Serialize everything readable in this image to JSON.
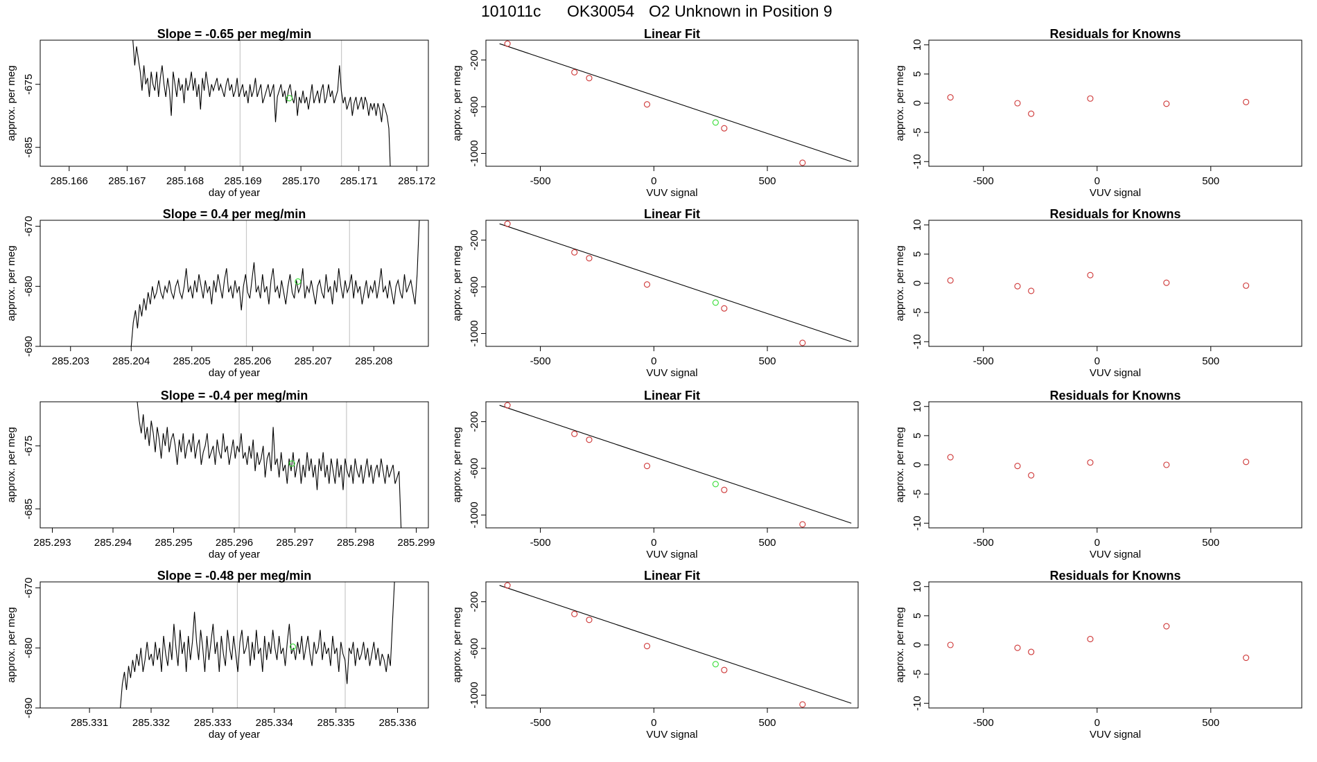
{
  "title_parts": [
    "101011c",
    "OK30054",
    "O2 Unknown in Position  9"
  ],
  "colors": {
    "known_point": "#cd3333",
    "unknown_point": "#33dd33",
    "line": "#000000",
    "vline": "#c8c8c8"
  },
  "chart_data": [
    {
      "type": "line",
      "title": "Slope =  -0.65  per meg/min",
      "xlabel": "day of year",
      "ylabel": "approx. per meg",
      "xlim": [
        285.1655,
        285.1722
      ],
      "ylim": [
        -688,
        -668
      ],
      "xticks": [
        285.166,
        285.167,
        285.168,
        285.169,
        285.17,
        285.171,
        285.172
      ],
      "xtick_labels": [
        "285.166",
        "285.167",
        "285.168",
        "285.169",
        "285.170",
        "285.171",
        "285.172"
      ],
      "yticks": [
        -685,
        -675
      ],
      "ytick_labels": [
        "-685",
        "-675"
      ],
      "vlines": [
        285.16895,
        285.1707
      ],
      "unknown_point": {
        "x": 285.1698,
        "y": -677.2
      },
      "series_x_range": [
        285.1671,
        285.17155
      ],
      "series_y": [
        -668,
        -672,
        -669,
        -671,
        -673,
        -676,
        -672,
        -675,
        -674,
        -677,
        -673,
        -675,
        -676,
        -673,
        -677,
        -674,
        -672,
        -675,
        -677,
        -674,
        -676,
        -680,
        -673,
        -675,
        -677,
        -674,
        -676,
        -675,
        -678,
        -674,
        -676,
        -675,
        -673,
        -676,
        -674,
        -677,
        -675,
        -679,
        -674,
        -676,
        -673,
        -675,
        -677,
        -675,
        -676,
        -675,
        -674,
        -676,
        -675,
        -676,
        -677,
        -675,
        -674,
        -676,
        -675,
        -677,
        -676,
        -674,
        -677,
        -676,
        -675,
        -677,
        -676,
        -678,
        -675,
        -677,
        -676,
        -674,
        -677,
        -676,
        -675,
        -678,
        -677,
        -676,
        -675,
        -677,
        -676,
        -675,
        -681,
        -677,
        -676,
        -675,
        -677,
        -676,
        -678,
        -676,
        -675,
        -677,
        -678,
        -676,
        -680,
        -677,
        -678,
        -676,
        -678,
        -677,
        -679,
        -677,
        -675,
        -678,
        -677,
        -676,
        -678,
        -676,
        -675,
        -678,
        -677,
        -675,
        -677,
        -676,
        -678,
        -677,
        -676,
        -672,
        -676,
        -678,
        -677,
        -679,
        -678,
        -677,
        -680,
        -678,
        -677,
        -679,
        -678,
        -677,
        -679,
        -677,
        -678,
        -680,
        -678,
        -679,
        -678,
        -680,
        -678,
        -679,
        -681,
        -678,
        -679,
        -680,
        -682,
        -690
      ]
    },
    {
      "type": "scatter",
      "title": "Linear Fit",
      "xlabel": "VUV signal",
      "ylabel": "approx. per meg",
      "xlim": [
        -740,
        900
      ],
      "ylim": [
        -1110,
        -30
      ],
      "xticks": [
        -500,
        0,
        500
      ],
      "xtick_labels": [
        "-500",
        "0",
        "500"
      ],
      "yticks": [
        -200,
        -600,
        -1000
      ],
      "ytick_labels": [
        "-200",
        "-600",
        "-1000"
      ],
      "fit_line": [
        [
          -680,
          -60
        ],
        [
          870,
          -1070
        ]
      ],
      "knowns": [
        [
          -645,
          -60
        ],
        [
          -350,
          -305
        ],
        [
          -285,
          -355
        ],
        [
          -30,
          -580
        ],
        [
          310,
          -785
        ],
        [
          655,
          -1080
        ]
      ],
      "unknown": [
        272,
        -735
      ]
    },
    {
      "type": "scatter",
      "title": "Residuals for Knowns",
      "xlabel": "VUV signal",
      "ylabel": "approx. per meg",
      "xlim": [
        -740,
        900
      ],
      "ylim": [
        -10.8,
        10.8
      ],
      "xticks": [
        -500,
        0,
        500
      ],
      "xtick_labels": [
        "-500",
        "0",
        "500"
      ],
      "yticks": [
        10,
        5,
        0,
        -5,
        -10
      ],
      "ytick_labels": [
        "10",
        "5",
        "0",
        "-5",
        "-10"
      ],
      "points": [
        [
          -645,
          1.0
        ],
        [
          -350,
          0.0
        ],
        [
          -290,
          -1.8
        ],
        [
          -30,
          0.8
        ],
        [
          305,
          -0.1
        ],
        [
          655,
          0.2
        ]
      ]
    },
    {
      "type": "line",
      "title": "Slope =  0.4  per meg/min",
      "xlabel": "day of year",
      "ylabel": "approx. per meg",
      "xlim": [
        285.2025,
        285.2089
      ],
      "ylim": [
        -690,
        -669
      ],
      "xticks": [
        285.203,
        285.204,
        285.205,
        285.206,
        285.207,
        285.208
      ],
      "xtick_labels": [
        "285.203",
        "285.204",
        "285.205",
        "285.206",
        "285.207",
        "285.208"
      ],
      "yticks": [
        -670,
        -680,
        -690
      ],
      "ytick_labels": [
        "-670",
        "-680",
        "-690"
      ],
      "vlines": [
        285.2059,
        285.2076
      ],
      "unknown_point": {
        "x": 285.20675,
        "y": -679.2
      },
      "series_x_range": [
        285.204,
        285.20875
      ],
      "series_y": [
        -690,
        -686,
        -684,
        -687,
        -683,
        -685,
        -682,
        -684,
        -681,
        -683,
        -680,
        -682,
        -681,
        -679,
        -681,
        -682,
        -680,
        -681,
        -679,
        -681,
        -682,
        -680,
        -679,
        -681,
        -682,
        -680,
        -677,
        -681,
        -680,
        -682,
        -679,
        -681,
        -678,
        -680,
        -682,
        -679,
        -681,
        -680,
        -683,
        -679,
        -681,
        -678,
        -680,
        -682,
        -679,
        -677,
        -681,
        -680,
        -682,
        -679,
        -681,
        -680,
        -684,
        -680,
        -678,
        -681,
        -682,
        -679,
        -676,
        -681,
        -680,
        -682,
        -678,
        -681,
        -680,
        -683,
        -679,
        -677,
        -681,
        -680,
        -682,
        -679,
        -681,
        -683,
        -680,
        -678,
        -681,
        -682,
        -679,
        -681,
        -680,
        -677,
        -682,
        -680,
        -681,
        -679,
        -681,
        -683,
        -680,
        -679,
        -681,
        -682,
        -678,
        -681,
        -680,
        -683,
        -679,
        -681,
        -677,
        -680,
        -682,
        -679,
        -681,
        -680,
        -678,
        -682,
        -679,
        -681,
        -680,
        -683,
        -681,
        -679,
        -682,
        -680,
        -681,
        -679,
        -682,
        -680,
        -677,
        -681,
        -680,
        -682,
        -679,
        -681,
        -683,
        -680,
        -679,
        -681,
        -682,
        -678,
        -681,
        -680,
        -679,
        -681,
        -683,
        -678,
        -669
      ]
    },
    {
      "type": "scatter",
      "title": "Linear Fit",
      "xlabel": "VUV signal",
      "ylabel": "approx. per meg",
      "xlim": [
        -740,
        900
      ],
      "ylim": [
        -1110,
        -30
      ],
      "xticks": [
        -500,
        0,
        500
      ],
      "xtick_labels": [
        "-500",
        "0",
        "500"
      ],
      "yticks": [
        -200,
        -600,
        -1000
      ],
      "ytick_labels": [
        "-200",
        "-600",
        "-1000"
      ],
      "fit_line": [
        [
          -680,
          -60
        ],
        [
          870,
          -1070
        ]
      ],
      "knowns": [
        [
          -645,
          -60
        ],
        [
          -350,
          -305
        ],
        [
          -285,
          -355
        ],
        [
          -30,
          -580
        ],
        [
          310,
          -785
        ],
        [
          655,
          -1080
        ]
      ],
      "unknown": [
        272,
        -735
      ]
    },
    {
      "type": "scatter",
      "title": "Residuals for Knowns",
      "xlabel": "VUV signal",
      "ylabel": "approx. per meg",
      "xlim": [
        -740,
        900
      ],
      "ylim": [
        -10.8,
        10.8
      ],
      "xticks": [
        -500,
        0,
        500
      ],
      "xtick_labels": [
        "-500",
        "0",
        "500"
      ],
      "yticks": [
        10,
        5,
        0,
        -5,
        -10
      ],
      "ytick_labels": [
        "10",
        "5",
        "0",
        "-5",
        "-10"
      ],
      "points": [
        [
          -645,
          0.5
        ],
        [
          -350,
          -0.5
        ],
        [
          -290,
          -1.3
        ],
        [
          -30,
          1.4
        ],
        [
          305,
          0.1
        ],
        [
          655,
          -0.4
        ]
      ]
    },
    {
      "type": "line",
      "title": "Slope =  -0.4  per meg/min",
      "xlabel": "day of year",
      "ylabel": "approx. per meg",
      "xlim": [
        285.2928,
        285.2992
      ],
      "ylim": [
        -688,
        -668
      ],
      "xticks": [
        285.293,
        285.294,
        285.295,
        285.296,
        285.297,
        285.298,
        285.299
      ],
      "xtick_labels": [
        "285.293",
        "285.294",
        "285.295",
        "285.296",
        "285.297",
        "285.298",
        "285.299"
      ],
      "yticks": [
        -685,
        -675
      ],
      "ytick_labels": [
        "-685",
        "-675"
      ],
      "vlines": [
        285.29608,
        285.29785
      ],
      "unknown_point": {
        "x": 285.29695,
        "y": -677.8
      },
      "series_x_range": [
        285.2944,
        285.29875
      ],
      "series_y": [
        -668,
        -671,
        -673,
        -670,
        -674,
        -672,
        -675,
        -671,
        -673,
        -676,
        -672,
        -674,
        -677,
        -673,
        -675,
        -672,
        -676,
        -674,
        -673,
        -675,
        -678,
        -674,
        -676,
        -673,
        -677,
        -675,
        -674,
        -676,
        -673,
        -677,
        -675,
        -674,
        -678,
        -676,
        -675,
        -673,
        -677,
        -676,
        -675,
        -678,
        -674,
        -676,
        -677,
        -673,
        -676,
        -675,
        -678,
        -676,
        -674,
        -677,
        -675,
        -676,
        -673,
        -677,
        -676,
        -678,
        -675,
        -677,
        -674,
        -679,
        -676,
        -678,
        -677,
        -675,
        -680,
        -677,
        -676,
        -679,
        -672,
        -678,
        -677,
        -680,
        -676,
        -679,
        -678,
        -681,
        -677,
        -679,
        -676,
        -680,
        -678,
        -677,
        -681,
        -678,
        -680,
        -676,
        -679,
        -677,
        -680,
        -678,
        -682,
        -677,
        -679,
        -676,
        -680,
        -678,
        -681,
        -677,
        -679,
        -681,
        -677,
        -680,
        -678,
        -682,
        -677,
        -679,
        -680,
        -678,
        -681,
        -677,
        -679,
        -680,
        -678,
        -681,
        -679,
        -677,
        -680,
        -678,
        -681,
        -679,
        -678,
        -680,
        -677,
        -679,
        -681,
        -678,
        -680,
        -679,
        -678,
        -681,
        -680,
        -679,
        -688
      ]
    },
    {
      "type": "scatter",
      "title": "Linear Fit",
      "xlabel": "VUV signal",
      "ylabel": "approx. per meg",
      "xlim": [
        -740,
        900
      ],
      "ylim": [
        -1110,
        -30
      ],
      "xticks": [
        -500,
        0,
        500
      ],
      "xtick_labels": [
        "-500",
        "0",
        "500"
      ],
      "yticks": [
        -200,
        -600,
        -1000
      ],
      "ytick_labels": [
        "-200",
        "-600",
        "-1000"
      ],
      "fit_line": [
        [
          -680,
          -60
        ],
        [
          870,
          -1070
        ]
      ],
      "knowns": [
        [
          -645,
          -60
        ],
        [
          -350,
          -305
        ],
        [
          -285,
          -355
        ],
        [
          -30,
          -580
        ],
        [
          310,
          -785
        ],
        [
          655,
          -1080
        ]
      ],
      "unknown": [
        272,
        -735
      ]
    },
    {
      "type": "scatter",
      "title": "Residuals for Knowns",
      "xlabel": "VUV signal",
      "ylabel": "approx. per meg",
      "xlim": [
        -740,
        900
      ],
      "ylim": [
        -10.8,
        10.8
      ],
      "xticks": [
        -500,
        0,
        500
      ],
      "xtick_labels": [
        "-500",
        "0",
        "500"
      ],
      "yticks": [
        10,
        5,
        0,
        -5,
        -10
      ],
      "ytick_labels": [
        "10",
        "5",
        "0",
        "-5",
        "-10"
      ],
      "points": [
        [
          -645,
          1.3
        ],
        [
          -350,
          -0.2
        ],
        [
          -290,
          -1.8
        ],
        [
          -30,
          0.4
        ],
        [
          305,
          0.0
        ],
        [
          655,
          0.5
        ]
      ]
    },
    {
      "type": "line",
      "title": "Slope =  -0.48  per meg/min",
      "xlabel": "day of year",
      "ylabel": "approx. per meg",
      "xlim": [
        285.3302,
        285.3365
      ],
      "ylim": [
        -690,
        -669
      ],
      "xticks": [
        285.331,
        285.332,
        285.333,
        285.334,
        285.335,
        285.336
      ],
      "xtick_labels": [
        "285.331",
        "285.332",
        "285.333",
        "285.334",
        "285.335",
        "285.336"
      ],
      "yticks": [
        -670,
        -680,
        -690
      ],
      "ytick_labels": [
        "-670",
        "-680",
        "-690"
      ],
      "vlines": [
        285.3334,
        285.33515
      ],
      "unknown_point": {
        "x": 285.3343,
        "y": -679.8
      },
      "series_x_range": [
        285.3315,
        285.33595
      ],
      "series_y": [
        -690,
        -686,
        -684,
        -687,
        -683,
        -685,
        -682,
        -684,
        -681,
        -683,
        -680,
        -684,
        -682,
        -679,
        -682,
        -681,
        -683,
        -679,
        -682,
        -680,
        -684,
        -678,
        -681,
        -683,
        -679,
        -682,
        -676,
        -680,
        -683,
        -677,
        -681,
        -679,
        -684,
        -678,
        -682,
        -679,
        -674,
        -679,
        -682,
        -677,
        -680,
        -684,
        -678,
        -682,
        -679,
        -676,
        -681,
        -679,
        -684,
        -678,
        -681,
        -683,
        -677,
        -680,
        -682,
        -678,
        -681,
        -684,
        -679,
        -677,
        -681,
        -680,
        -678,
        -683,
        -679,
        -682,
        -677,
        -681,
        -680,
        -684,
        -678,
        -682,
        -679,
        -681,
        -677,
        -680,
        -682,
        -678,
        -681,
        -680,
        -683,
        -679,
        -676,
        -681,
        -680,
        -682,
        -679,
        -681,
        -678,
        -682,
        -680,
        -678,
        -681,
        -683,
        -679,
        -681,
        -680,
        -677,
        -682,
        -679,
        -681,
        -680,
        -683,
        -678,
        -681,
        -680,
        -684,
        -679,
        -681,
        -682,
        -686,
        -680,
        -681,
        -679,
        -683,
        -680,
        -682,
        -681,
        -679,
        -682,
        -680,
        -683,
        -681,
        -679,
        -682,
        -680,
        -683,
        -681,
        -682,
        -684,
        -681,
        -683,
        -676,
        -669
      ]
    },
    {
      "type": "scatter",
      "title": "Linear Fit",
      "xlabel": "VUV signal",
      "ylabel": "approx. per meg",
      "xlim": [
        -740,
        900
      ],
      "ylim": [
        -1110,
        -30
      ],
      "xticks": [
        -500,
        0,
        500
      ],
      "xtick_labels": [
        "-500",
        "0",
        "500"
      ],
      "yticks": [
        -200,
        -600,
        -1000
      ],
      "ytick_labels": [
        "-200",
        "-600",
        "-1000"
      ],
      "fit_line": [
        [
          -680,
          -60
        ],
        [
          870,
          -1070
        ]
      ],
      "knowns": [
        [
          -645,
          -60
        ],
        [
          -350,
          -305
        ],
        [
          -285,
          -355
        ],
        [
          -30,
          -580
        ],
        [
          310,
          -785
        ],
        [
          655,
          -1080
        ]
      ],
      "unknown": [
        272,
        -735
      ]
    },
    {
      "type": "scatter",
      "title": "Residuals for Knowns",
      "xlabel": "VUV signal",
      "ylabel": "approx. per meg",
      "xlim": [
        -740,
        900
      ],
      "ylim": [
        -10.8,
        10.8
      ],
      "xticks": [
        -500,
        0,
        500
      ],
      "xtick_labels": [
        "-500",
        "0",
        "500"
      ],
      "yticks": [
        10,
        5,
        0,
        -5,
        -10
      ],
      "ytick_labels": [
        "10",
        "5",
        "0",
        "-5",
        "-10"
      ],
      "points": [
        [
          -645,
          0.0
        ],
        [
          -350,
          -0.5
        ],
        [
          -290,
          -1.2
        ],
        [
          -30,
          1.0
        ],
        [
          305,
          3.2
        ],
        [
          655,
          -2.2
        ]
      ]
    }
  ]
}
